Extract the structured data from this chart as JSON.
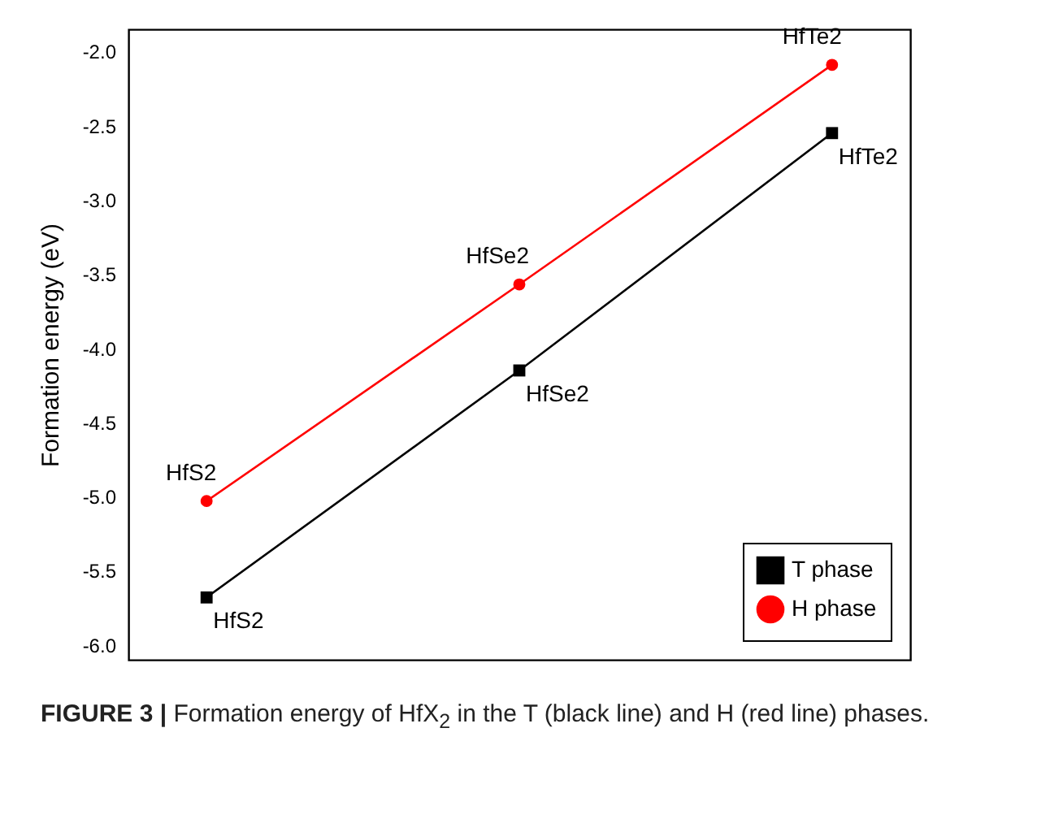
{
  "chart_data": {
    "type": "line",
    "ylabel": "Formation energy (eV)",
    "categories": [
      null,
      null,
      null
    ],
    "series": [
      {
        "name": "T phase",
        "color": "#000000",
        "marker": "square",
        "values": [
          -5.68,
          -4.15,
          -2.55
        ],
        "value_labels": [
          "HfS2",
          "HfSe2",
          "HfTe2"
        ]
      },
      {
        "name": "H phase",
        "color": "#ff0000",
        "marker": "circle",
        "values": [
          -5.03,
          -3.57,
          -2.09
        ],
        "value_labels": [
          "HfS2",
          "HfSe2",
          "HfTe2"
        ]
      }
    ],
    "ylim": [
      -6.1,
      -1.85
    ],
    "yticks": [
      {
        "value": -6,
        "label": "-6.0"
      },
      {
        "value": -5.5,
        "label": "-5.5"
      },
      {
        "value": -5,
        "label": "-5.0"
      },
      {
        "value": -4.5,
        "label": "-4.5"
      },
      {
        "value": -4,
        "label": "-4.0"
      },
      {
        "value": -3.5,
        "label": "-3.5"
      },
      {
        "value": -3,
        "label": "-3.0"
      },
      {
        "value": -2.5,
        "label": "-2.5"
      },
      {
        "value": -2,
        "label": "-2.0"
      }
    ],
    "grid": false,
    "legend": "bottom right",
    "tick_labels": "y",
    "line_style": "solid",
    "annotations": [
      "FIGURE 3 | Formation energy of HfX$_{2}$ in the T (black line) and H (red line) phases."
    ]
  }
}
